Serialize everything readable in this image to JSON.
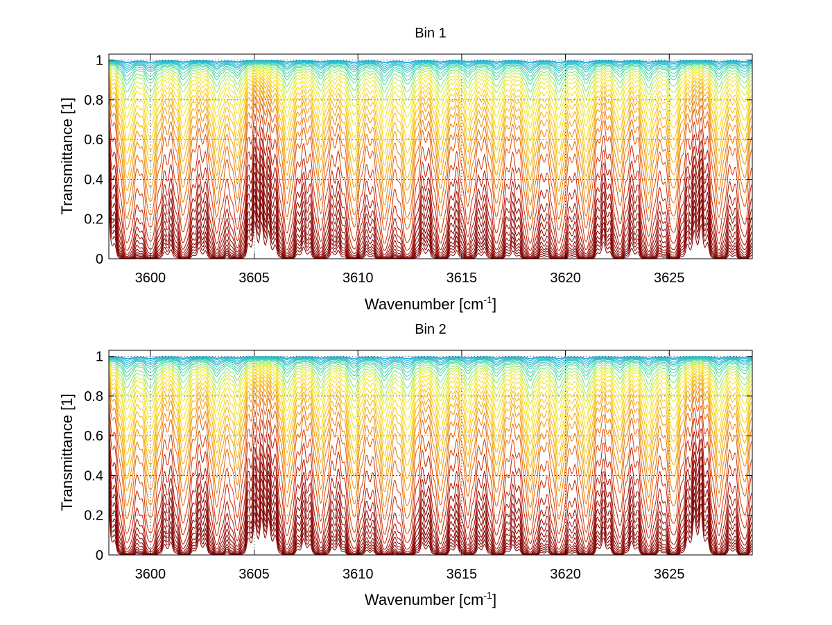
{
  "chart_data": [
    {
      "type": "line",
      "title": "Bin 1",
      "xlabel": "Wavenumber [cm",
      "xlabel_sup": "-1",
      "xlabel_close": "]",
      "ylabel": "Transmittance [1]",
      "xlim": [
        3598,
        3629
      ],
      "ylim": [
        0,
        1.03
      ],
      "grid": true,
      "legend": "none",
      "x_ticks": [
        "3600",
        "3605",
        "3610",
        "3615",
        "3620",
        "3625"
      ],
      "y_ticks": [
        "0",
        "0.2",
        "0.4",
        "0.6",
        "0.8",
        "1"
      ],
      "colormap": "jet (top curves cyan/yellow, bottom curves dark red)",
      "absorption_line_centers": [
        3598.9,
        3600.0,
        3601.6,
        3603.2,
        3604.2,
        3606.6,
        3608.2,
        3609.8,
        3611.3,
        3612.4,
        3614.0,
        3615.3,
        3616.7,
        3618.3,
        3619.7,
        3621.0,
        3622.6,
        3624.0,
        3625.2,
        3627.4,
        3628.6
      ],
      "series_description": "About 45 transmittance spectra spanning 1.0 (top) down to 0.0 (bottom)",
      "series_mean_levels": [
        1.0,
        0.995,
        0.99,
        0.985,
        0.98,
        0.975,
        0.97,
        0.96,
        0.95,
        0.94,
        0.92,
        0.9,
        0.875,
        0.85,
        0.82,
        0.78,
        0.74,
        0.7,
        0.65,
        0.6,
        0.54,
        0.47,
        0.4,
        0.3,
        0.22,
        0.16,
        0.12,
        0.09,
        0.065,
        0.045,
        0.03,
        0.02,
        0.014,
        0.009,
        0.005,
        0.002
      ]
    },
    {
      "type": "line",
      "title": "Bin 2",
      "xlabel": "Wavenumber [cm",
      "xlabel_sup": "-1",
      "xlabel_close": "]",
      "ylabel": "Transmittance [1]",
      "xlim": [
        3598,
        3629
      ],
      "ylim": [
        0,
        1.03
      ],
      "grid": true,
      "legend": "none",
      "x_ticks": [
        "3600",
        "3605",
        "3610",
        "3615",
        "3620",
        "3625"
      ],
      "y_ticks": [
        "0",
        "0.2",
        "0.4",
        "0.6",
        "0.8",
        "1"
      ],
      "colormap": "jet (top curves cyan/yellow, bottom curves dark red)",
      "absorption_line_centers": [
        3598.9,
        3600.0,
        3601.6,
        3603.2,
        3604.2,
        3606.6,
        3608.2,
        3609.8,
        3611.3,
        3612.4,
        3614.0,
        3615.3,
        3616.7,
        3618.3,
        3619.7,
        3621.0,
        3622.6,
        3624.0,
        3625.2,
        3627.4,
        3628.6
      ],
      "series_description": "About 45 transmittance spectra spanning 1.0 (top) down to 0.0 (bottom)",
      "series_mean_levels": [
        1.0,
        0.995,
        0.99,
        0.985,
        0.98,
        0.975,
        0.97,
        0.96,
        0.95,
        0.94,
        0.92,
        0.9,
        0.88,
        0.86,
        0.83,
        0.8,
        0.76,
        0.72,
        0.68,
        0.63,
        0.58,
        0.51,
        0.44,
        0.34,
        0.26,
        0.18,
        0.13,
        0.095,
        0.07,
        0.05,
        0.035,
        0.022,
        0.015,
        0.01,
        0.006,
        0.003
      ]
    }
  ]
}
